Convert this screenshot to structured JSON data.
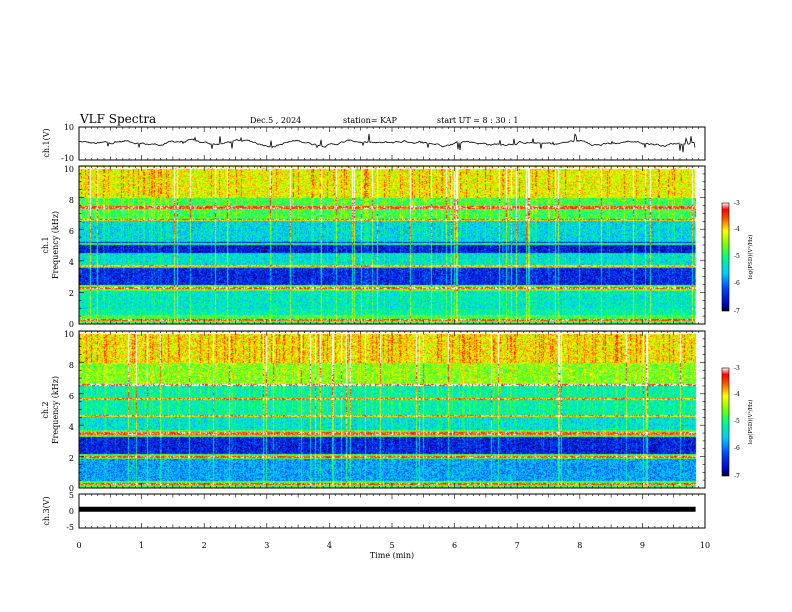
{
  "header": {
    "title": "VLF Spectra",
    "date": "Dec.5  , 2024",
    "station": "station= KAP",
    "start": "start  UT  =   8  : 30 : 1"
  },
  "chart_data": [
    {
      "type": "line",
      "panel": "ch1-waveform",
      "ylabel": "ch.1(V)",
      "ylim": [
        -10,
        10
      ],
      "yticks": [
        {
          "v": 10,
          "label": "10"
        },
        {
          "v": -10,
          "label": "-10"
        }
      ],
      "xlim": [
        0,
        9.85
      ],
      "series": [
        {
          "name": "ch.1",
          "mean": 0.5,
          "amplitude": 2.2,
          "color": "#000000"
        }
      ]
    },
    {
      "type": "heatmap",
      "panel": "ch1-spectrogram",
      "ylabel_line1": "ch.1",
      "ylabel_line2": "Frequency  (kHz)",
      "ylim": [
        0,
        10
      ],
      "yticks": [
        {
          "v": 0,
          "label": "0"
        },
        {
          "v": 2,
          "label": "2"
        },
        {
          "v": 4,
          "label": "4"
        },
        {
          "v": 6,
          "label": "6"
        },
        {
          "v": 8,
          "label": "8"
        },
        {
          "v": 10,
          "label": "10"
        }
      ],
      "xlim": [
        0,
        9.85
      ],
      "bands": [
        {
          "from": 0,
          "to": 0.6,
          "level": 0.55
        },
        {
          "from": 0.6,
          "to": 1.0,
          "level": 0.45
        },
        {
          "from": 1.0,
          "to": 2.1,
          "level": 0.42
        },
        {
          "from": 2.1,
          "to": 2.5,
          "level": 0.58
        },
        {
          "from": 2.5,
          "to": 3.6,
          "level": 0.14
        },
        {
          "from": 3.6,
          "to": 4.5,
          "level": 0.4
        },
        {
          "from": 4.5,
          "to": 5.2,
          "level": 0.12
        },
        {
          "from": 5.2,
          "to": 6.6,
          "level": 0.38
        },
        {
          "from": 6.6,
          "to": 8.0,
          "level": 0.55
        },
        {
          "from": 8.0,
          "to": 10,
          "level": 0.72
        }
      ],
      "lines": [
        0.3,
        2.3,
        3.7,
        5.1,
        6.6,
        7.4,
        9.9
      ]
    },
    {
      "type": "heatmap",
      "panel": "ch2-spectrogram",
      "ylabel_line1": "ch.2",
      "ylabel_line2": "Frequency  (kHz)",
      "ylim": [
        0,
        10
      ],
      "yticks": [
        {
          "v": 0,
          "label": "0"
        },
        {
          "v": 2,
          "label": "2"
        },
        {
          "v": 4,
          "label": "4"
        },
        {
          "v": 6,
          "label": "6"
        },
        {
          "v": 8,
          "label": "8"
        },
        {
          "v": 10,
          "label": "10"
        }
      ],
      "xlim": [
        0,
        9.85
      ],
      "bands": [
        {
          "from": 0,
          "to": 0.5,
          "level": 0.55
        },
        {
          "from": 0.5,
          "to": 1.9,
          "level": 0.3
        },
        {
          "from": 1.9,
          "to": 2.2,
          "level": 0.55
        },
        {
          "from": 2.2,
          "to": 3.3,
          "level": 0.13
        },
        {
          "from": 3.3,
          "to": 3.7,
          "level": 0.55
        },
        {
          "from": 3.7,
          "to": 4.6,
          "level": 0.4
        },
        {
          "from": 4.6,
          "to": 6.5,
          "level": 0.45
        },
        {
          "from": 6.5,
          "to": 8.0,
          "level": 0.62
        },
        {
          "from": 8.0,
          "to": 10,
          "level": 0.74
        }
      ],
      "lines": [
        0.3,
        2.0,
        3.5,
        4.6,
        5.7,
        6.6,
        9.9
      ]
    },
    {
      "type": "line",
      "panel": "ch3-waveform",
      "ylabel": "ch.3(V)",
      "ylim": [
        -5,
        5
      ],
      "yticks": [
        {
          "v": 5,
          "label": "5"
        },
        {
          "v": 0,
          "label": "0"
        },
        {
          "v": -5,
          "label": "-5"
        }
      ],
      "xlim": [
        0,
        9.85
      ],
      "series": [
        {
          "name": "ch.3",
          "mean": 0,
          "amplitude": 0.5,
          "color": "#000000"
        }
      ]
    }
  ],
  "xaxis": {
    "label": "Time  (min)",
    "range": [
      0,
      10
    ],
    "ticks": [
      {
        "v": 0,
        "label": "0"
      },
      {
        "v": 1,
        "label": "1"
      },
      {
        "v": 2,
        "label": "2"
      },
      {
        "v": 3,
        "label": "3"
      },
      {
        "v": 4,
        "label": "4"
      },
      {
        "v": 5,
        "label": "5"
      },
      {
        "v": 6,
        "label": "6"
      },
      {
        "v": 7,
        "label": "7"
      },
      {
        "v": 8,
        "label": "8"
      },
      {
        "v": 9,
        "label": "9"
      },
      {
        "v": 10,
        "label": "10"
      }
    ]
  },
  "colorbar": {
    "label": "log(PSD)(V²/Hz)",
    "range": [
      -7,
      -3
    ],
    "ticks": [
      {
        "v": -3,
        "label": "-3"
      },
      {
        "v": -4,
        "label": "-4"
      },
      {
        "v": -5,
        "label": "-5"
      },
      {
        "v": -6,
        "label": "-6"
      },
      {
        "v": -7,
        "label": "-7"
      }
    ]
  }
}
